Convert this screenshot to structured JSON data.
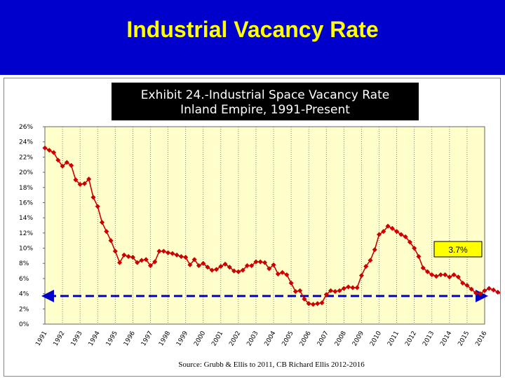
{
  "slide": {
    "title": "Industrial Vacancy Rate",
    "title_color": "#ffff00",
    "banner_color": "#0000cc"
  },
  "chart_data": {
    "type": "line",
    "title": "Exhibit 24.-Industrial Space Vacancy Rate",
    "subtitle": "Inland Empire, 1991-Present",
    "source": "Source:  Grubb & Ellis to 2011, CB Richard Ellis 2012-2016",
    "y_ticks": [
      "0%",
      "2%",
      "4%",
      "6%",
      "8%",
      "10%",
      "12%",
      "14%",
      "16%",
      "18%",
      "20%",
      "22%",
      "24%",
      "26%"
    ],
    "x_ticks": [
      "1991",
      "1992",
      "1993",
      "1994",
      "1995",
      "1996",
      "1997",
      "1998",
      "1999",
      "2000",
      "2001",
      "2002",
      "2003",
      "2004",
      "2005",
      "2006",
      "2007",
      "2008",
      "2009",
      "2010",
      "2011",
      "2012",
      "2013",
      "2014",
      "2015",
      "2016"
    ],
    "ylim": [
      0,
      26
    ],
    "grid": "vertical dotted",
    "series": [
      {
        "color": "#cc0000",
        "x_start": "1991 Q1",
        "frequency": "quarterly",
        "values": [
          23.2,
          22.9,
          22.6,
          21.6,
          20.8,
          21.3,
          20.9,
          19.0,
          18.4,
          18.5,
          19.1,
          16.7,
          15.5,
          13.4,
          12.2,
          11.0,
          9.6,
          8.1,
          9.1,
          8.9,
          8.8,
          8.1,
          8.4,
          8.5,
          7.7,
          8.2,
          9.6,
          9.6,
          9.4,
          9.3,
          9.1,
          8.9,
          8.8,
          7.8,
          8.5,
          7.7,
          8.0,
          7.5,
          7.1,
          7.2,
          7.6,
          7.9,
          7.5,
          7.0,
          6.9,
          7.1,
          7.7,
          7.7,
          8.2,
          8.2,
          8.1,
          7.3,
          7.8,
          6.6,
          6.8,
          6.5,
          5.4,
          4.3,
          4.4,
          3.3,
          2.7,
          2.6,
          2.7,
          2.8,
          3.9,
          4.4,
          4.3,
          4.4,
          4.7,
          4.9,
          4.8,
          4.8,
          6.4,
          7.6,
          8.4,
          9.8,
          11.8,
          12.2,
          12.9,
          12.6,
          12.2,
          11.8,
          11.5,
          10.8,
          10.0,
          8.9,
          7.4,
          6.9,
          6.5,
          6.3,
          6.5,
          6.5,
          6.2,
          6.5,
          6.2,
          5.4,
          5.1,
          4.6,
          4.1,
          4.0,
          4.4,
          4.7,
          4.5,
          4.2,
          3.9,
          3.6,
          3.5,
          3.3,
          4.1,
          3.7
        ]
      }
    ],
    "reference_line": {
      "value": 3.7,
      "color": "#0000cc",
      "style": "dashed",
      "arrow": "both"
    },
    "callout": {
      "text": "3.7%",
      "background": "#ffff00"
    }
  }
}
